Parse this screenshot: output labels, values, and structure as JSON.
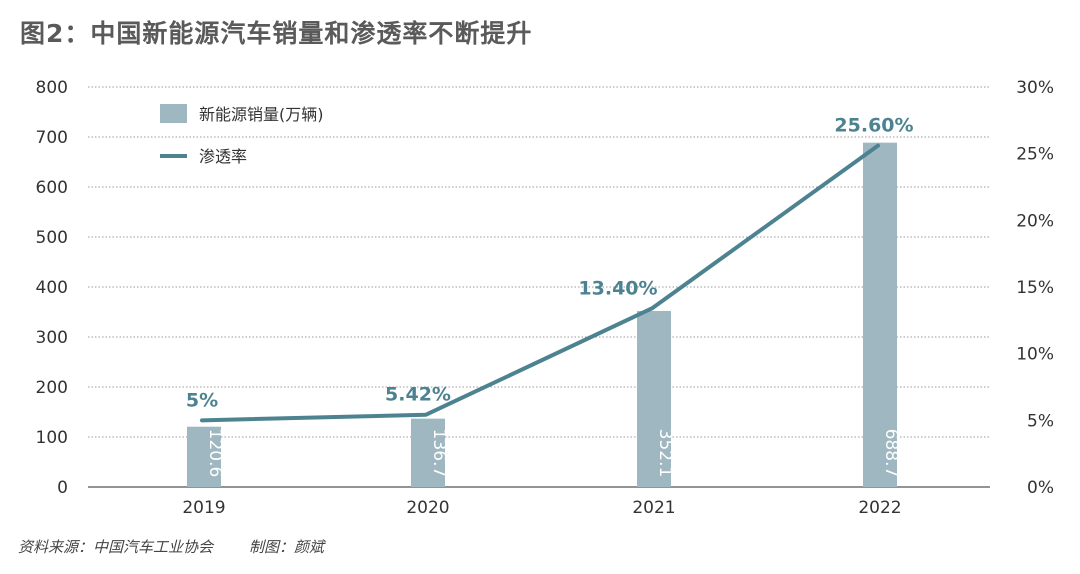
{
  "title": "图2：中国新能源汽车销量和渗透率不断提升",
  "footer": {
    "source": "资料来源：中国汽车工业协会",
    "author": "制图：颜斌"
  },
  "colors": {
    "bar": "#9fb7c1",
    "line": "#4d8391",
    "label": "#4d8391",
    "grid": "#999999"
  },
  "chart_data": {
    "type": "bar",
    "title": "图2：中国新能源汽车销量和渗透率不断提升",
    "categories": [
      "2019",
      "2020",
      "2021",
      "2022"
    ],
    "series": [
      {
        "name": "新能源销量(万辆)",
        "type": "bar",
        "axis": "left",
        "values": [
          120.6,
          136.7,
          352.1,
          688.7
        ],
        "value_labels": [
          "120.6",
          "136.7",
          "352.1",
          "688.7"
        ]
      },
      {
        "name": "渗透率",
        "type": "line",
        "axis": "right",
        "values": [
          5,
          5.42,
          13.4,
          25.6
        ],
        "value_labels": [
          "5%",
          "5.42%",
          "13.40%",
          "25.60%"
        ]
      }
    ],
    "left_axis": {
      "range": [
        0,
        800
      ],
      "ticks": [
        0,
        100,
        200,
        300,
        400,
        500,
        600,
        700,
        800
      ],
      "tick_labels": [
        "0",
        "100",
        "200",
        "300",
        "400",
        "500",
        "600",
        "700",
        "800"
      ]
    },
    "right_axis": {
      "range": [
        0,
        30
      ],
      "ticks": [
        0,
        5,
        10,
        15,
        20,
        25,
        30
      ],
      "tick_labels": [
        "0%",
        "5%",
        "10%",
        "15%",
        "20%",
        "25%",
        "30%"
      ]
    },
    "grid": true,
    "legend": {
      "position": "top-left",
      "entries": [
        {
          "label": "新能源销量(万辆)",
          "kind": "bar"
        },
        {
          "label": "渗透率",
          "kind": "line"
        }
      ]
    }
  }
}
